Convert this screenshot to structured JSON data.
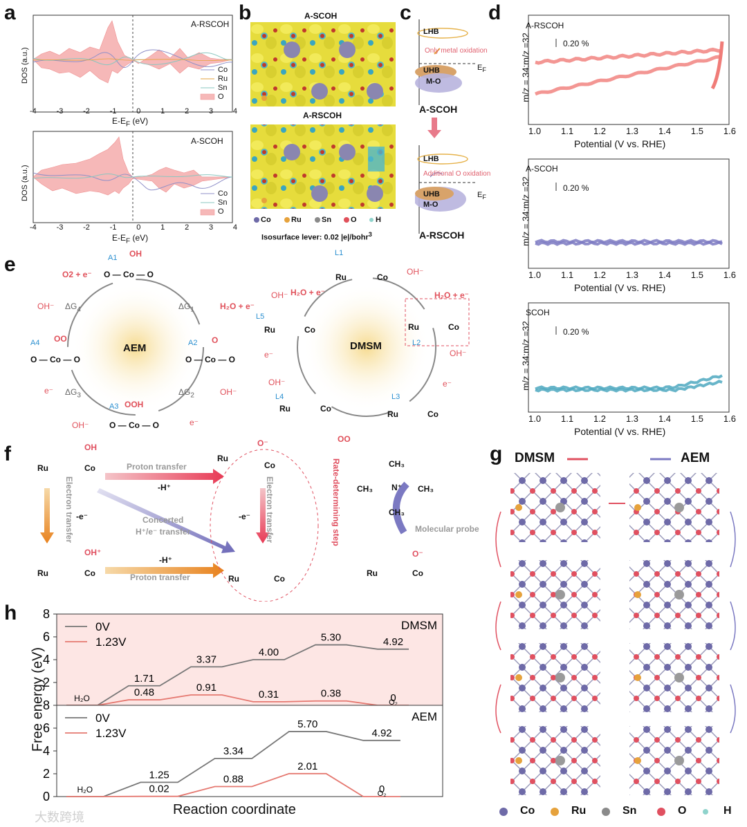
{
  "letters": {
    "a": "a",
    "b": "b",
    "c": "c",
    "d": "d",
    "e": "e",
    "f": "f",
    "g": "g",
    "h": "h"
  },
  "a": {
    "top_title": "A-RSCOH",
    "bottom_title": "A-SCOH",
    "ylabel": "DOS (a.u.)",
    "xlabel": "E-E",
    "xlabel_sub": "F",
    "xlabel_unit": " (eV)",
    "xticks": [
      "-4",
      "-3",
      "-2",
      "-1",
      "0",
      "1",
      "2",
      "3",
      "4"
    ],
    "top_legend": [
      "Co",
      "Ru",
      "Sn",
      "O"
    ],
    "bottom_legend": [
      "Co",
      "Sn",
      "O"
    ],
    "colors": {
      "Co": "#8f8fc8",
      "Ru": "#e6a23c",
      "Sn": "#8ac7c0",
      "O": "#f4a6a6"
    }
  },
  "b": {
    "top_title": "A-SCOH",
    "bottom_title": "A-RSCOH",
    "legend": [
      "Co",
      "Ru",
      "Sn",
      "O",
      "H"
    ],
    "isosurface": "Isosurface lever: 0.02 |e|/bohr",
    "iso_sup": "3"
  },
  "c": {
    "top": {
      "lhb": "LHB",
      "note": "Only metal oxidation",
      "uhb": "UHB",
      "mo": "M-O",
      "ef": "E",
      "ef_sub": "F",
      "name": "A-SCOH"
    },
    "bottom": {
      "lhb": "LHB",
      "note": "Additional O oxidation",
      "uhb": "UHB",
      "mo": "M-O",
      "ef": "E",
      "ef_sub": "F",
      "name": "A-RSCOH"
    }
  },
  "d": {
    "ylabel": "m/z = 34:m/z =32",
    "xlabel": "Potential (V vs. RHE)",
    "scale": "0.20 %",
    "xticks": [
      "1.0",
      "1.1",
      "1.2",
      "1.3",
      "1.4",
      "1.5",
      "1.6"
    ],
    "panels": [
      {
        "title": "A-RSCOH",
        "color": "#f07c78"
      },
      {
        "title": "A-SCOH",
        "color": "#7b79c2"
      },
      {
        "title": "SCOH",
        "color": "#4ea8bf"
      }
    ]
  },
  "e": {
    "aem": {
      "center": "AEM",
      "A1": "A1",
      "A2": "A2",
      "A3": "A3",
      "A4": "A4",
      "g1": "ΔG",
      "g2": "ΔG",
      "g3": "ΔG",
      "g4": "ΔG",
      "s1": "1",
      "s2": "2",
      "s3": "3",
      "s4": "4",
      "oh_in": "OH⁻",
      "h2o_e": "H₂O + e⁻",
      "o2_e": "O2 + e⁻",
      "e": "e⁻",
      "lbl_oh": "OH",
      "lbl_o": "O",
      "lbl_ooh": "OOH",
      "lbl_oo": "OO",
      "lbl_co": "Co"
    },
    "dmsm": {
      "center": "DMSM",
      "L1": "L1",
      "L2": "L2",
      "L3": "L3",
      "L4": "L4",
      "L5": "L5",
      "h2o_e": "H₂O + e⁻",
      "oo": "OO",
      "oh": "OH⁻",
      "e": "e⁻",
      "ru": "Ru",
      "co": "Co",
      "o": "O",
      "h": "H"
    }
  },
  "f": {
    "proton_transfer_top": "Proton transfer",
    "minus_h": "-H⁺",
    "minus_e": "-e⁻",
    "electron_transfer_left": "Electron transfer",
    "electron_transfer_right": "Electron transfer",
    "concerted": "Concerted",
    "concerted2": "H⁺/e⁻ transfer",
    "proton_transfer_bottom": "Proton transfer",
    "rds": "Rate-determining step",
    "probe": "Molecular probe",
    "ru": "Ru",
    "co": "Co",
    "o": "O",
    "oh": "OH",
    "ohp": "OH⁺",
    "om": "O⁻",
    "ch3": "CH₃",
    "n": "N⁺"
  },
  "g": {
    "dmsm": "DMSM",
    "aem": "AEM",
    "legend": [
      "Co",
      "Ru",
      "Sn",
      "O",
      "H"
    ]
  },
  "h": {
    "ylabel": "Free energy (eV)",
    "xlabel": "Reaction coordinate",
    "yticks": [
      "0",
      "2",
      "4",
      "6",
      "8"
    ],
    "watermark": "大数跨境",
    "chart_data": [
      {
        "type": "line",
        "title": "DMSM",
        "series": [
          {
            "name": "0V",
            "values": [
              0,
              1.71,
              3.37,
              4.0,
              5.3,
              4.92
            ]
          },
          {
            "name": "1.23V",
            "values": [
              0,
              0.48,
              0.91,
              0.31,
              0.38,
              0
            ]
          }
        ],
        "labels": [
          "H₂O",
          "1.71",
          "3.37",
          "4.00",
          "5.30",
          "4.92"
        ],
        "labels2": [
          "0.48",
          "0.91",
          "0.31",
          "0.38",
          "0"
        ],
        "end_label": "O₂",
        "ylim": [
          0,
          8
        ]
      },
      {
        "type": "line",
        "title": "AEM",
        "series": [
          {
            "name": "0V",
            "values": [
              0,
              1.25,
              3.34,
              5.7,
              4.92
            ]
          },
          {
            "name": "1.23V",
            "values": [
              0,
              0.02,
              0.88,
              2.01,
              0
            ]
          }
        ],
        "labels": [
          "H₂O",
          "1.25",
          "3.34",
          "5.70",
          "4.92"
        ],
        "labels2": [
          "0.02",
          "0.88",
          "2.01",
          "0"
        ],
        "end_label": "O₂",
        "ylim": [
          0,
          8
        ]
      }
    ]
  }
}
